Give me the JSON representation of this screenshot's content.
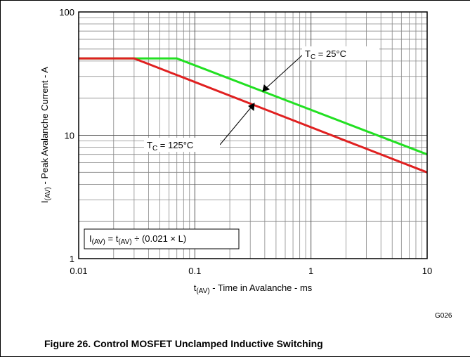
{
  "chart_data": {
    "type": "line",
    "xlabel": [
      "t",
      "(AV)",
      " - Time in Avalanche - ms"
    ],
    "ylabel": [
      "I",
      "(AV)",
      " - Peak Avalanche Current - A"
    ],
    "log_x": true,
    "log_y": true,
    "grid": true,
    "xlim": [
      0.01,
      10
    ],
    "ylim": [
      1,
      100
    ],
    "xticks": [
      0.01,
      0.1,
      1,
      10
    ],
    "yticks": [
      1,
      10,
      100
    ],
    "xminor_ticks": [
      0.02,
      0.03,
      0.04,
      0.05,
      0.06,
      0.07,
      0.08,
      0.09,
      0.2,
      0.3,
      0.4,
      0.5,
      0.6,
      0.7,
      0.8,
      0.9,
      2,
      3,
      4,
      5,
      6,
      7,
      8,
      9
    ],
    "yminor_ticks": [
      2,
      3,
      4,
      5,
      6,
      7,
      8,
      9,
      20,
      30,
      40,
      50,
      60,
      70,
      80,
      90
    ],
    "series": [
      {
        "name": [
          "T",
          "C",
          " = 25°C"
        ],
        "color": "#22e022",
        "x": [
          0.01,
          0.07,
          10
        ],
        "values": [
          42,
          42,
          7
        ]
      },
      {
        "name": [
          "T",
          "C",
          " = 125°C"
        ],
        "color": "#e02020",
        "x": [
          0.01,
          0.03,
          10
        ],
        "values": [
          42,
          42,
          5
        ]
      }
    ],
    "annotation": [
      "I",
      "(AV)",
      " = t",
      "(AV)",
      " ÷ (0.021 × L)"
    ],
    "code": "G026",
    "caption": "Figure 26. Control MOSFET Unclamped Inductive Switching"
  }
}
